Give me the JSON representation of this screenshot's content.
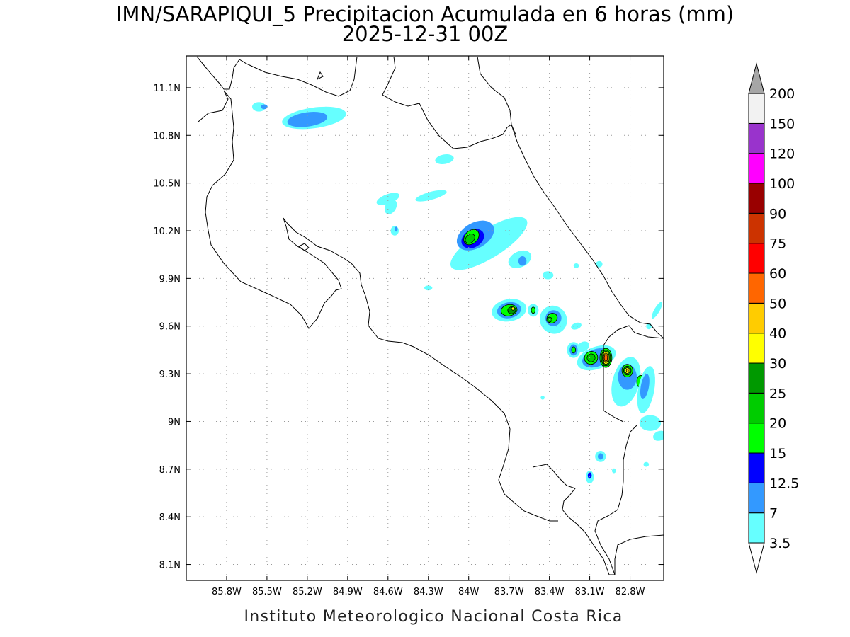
{
  "title": {
    "line1": "IMN/SARAPIQUI_5 Precipitacion Acumulada en 6 horas (mm)",
    "line2": "2025-12-31 00Z"
  },
  "footer": "Instituto Meteorologico Nacional Costa Rica",
  "map": {
    "lon_range": [
      -86.1,
      -82.55
    ],
    "lat_range": [
      8.0,
      11.3
    ],
    "lon_ticks": [
      {
        "value": -85.8,
        "label": "85.8W"
      },
      {
        "value": -85.5,
        "label": "85.5W"
      },
      {
        "value": -85.2,
        "label": "85.2W"
      },
      {
        "value": -84.9,
        "label": "84.9W"
      },
      {
        "value": -84.6,
        "label": "84.6W"
      },
      {
        "value": -84.3,
        "label": "84.3W"
      },
      {
        "value": -84.0,
        "label": "84W"
      },
      {
        "value": -83.7,
        "label": "83.7W"
      },
      {
        "value": -83.4,
        "label": "83.4W"
      },
      {
        "value": -83.1,
        "label": "83.1W"
      },
      {
        "value": -82.8,
        "label": "82.8W"
      }
    ],
    "lat_ticks": [
      {
        "value": 11.1,
        "label": "11.1N"
      },
      {
        "value": 10.8,
        "label": "10.8N"
      },
      {
        "value": 10.5,
        "label": "10.5N"
      },
      {
        "value": 10.2,
        "label": "10.2N"
      },
      {
        "value": 9.9,
        "label": "9.9N"
      },
      {
        "value": 9.6,
        "label": "9.6N"
      },
      {
        "value": 9.3,
        "label": "9.3N"
      },
      {
        "value": 9.0,
        "label": "9N"
      },
      {
        "value": 8.7,
        "label": "8.7N"
      },
      {
        "value": 8.4,
        "label": "8.4N"
      },
      {
        "value": 8.1,
        "label": "8.1N"
      }
    ]
  },
  "colorbar": {
    "levels": [
      "3.5",
      "7",
      "12.5",
      "15",
      "20",
      "25",
      "30",
      "40",
      "50",
      "60",
      "75",
      "90",
      "100",
      "120",
      "150",
      "200"
    ],
    "colors": [
      "#66ffff",
      "#3399ff",
      "#0000ff",
      "#00ff00",
      "#00cc00",
      "#009900",
      "#ffff00",
      "#ffcc00",
      "#ff6600",
      "#ff0000",
      "#cc3300",
      "#990000",
      "#ff00ff",
      "#9933cc",
      "#f2f2f2"
    ],
    "under_color": "#ffffff",
    "over_color": "#a6a6a6"
  },
  "precip_cells": [
    {
      "lon": -85.56,
      "lat": 10.98,
      "rx": 0.05,
      "ry": 0.03,
      "rot": 0,
      "level": 1
    },
    {
      "lon": -85.52,
      "lat": 10.98,
      "rx": 0.025,
      "ry": 0.015,
      "rot": 0,
      "level": 2
    },
    {
      "lon": -85.15,
      "lat": 10.91,
      "rx": 0.24,
      "ry": 0.065,
      "rot": -8,
      "level": 1
    },
    {
      "lon": -85.2,
      "lat": 10.9,
      "rx": 0.15,
      "ry": 0.045,
      "rot": -8,
      "level": 2
    },
    {
      "lon": -84.18,
      "lat": 10.65,
      "rx": 0.07,
      "ry": 0.03,
      "rot": -10,
      "level": 1
    },
    {
      "lon": -84.6,
      "lat": 10.4,
      "rx": 0.09,
      "ry": 0.03,
      "rot": -20,
      "level": 1
    },
    {
      "lon": -84.58,
      "lat": 10.35,
      "rx": 0.04,
      "ry": 0.05,
      "rot": 30,
      "level": 1
    },
    {
      "lon": -84.28,
      "lat": 10.42,
      "rx": 0.12,
      "ry": 0.025,
      "rot": -15,
      "level": 1
    },
    {
      "lon": -84.55,
      "lat": 10.2,
      "rx": 0.03,
      "ry": 0.03,
      "rot": 0,
      "level": 1
    },
    {
      "lon": -84.54,
      "lat": 10.21,
      "rx": 0.012,
      "ry": 0.015,
      "rot": 0,
      "level": 2
    },
    {
      "lon": -83.85,
      "lat": 10.12,
      "rx": 0.33,
      "ry": 0.09,
      "rot": -32,
      "level": 1
    },
    {
      "lon": -83.95,
      "lat": 10.17,
      "rx": 0.15,
      "ry": 0.08,
      "rot": -30,
      "level": 2
    },
    {
      "lon": -83.97,
      "lat": 10.15,
      "rx": 0.09,
      "ry": 0.055,
      "rot": -30,
      "level": 3
    },
    {
      "lon": -83.98,
      "lat": 10.16,
      "rx": 0.065,
      "ry": 0.04,
      "rot": -45,
      "level": 4
    },
    {
      "lon": -83.99,
      "lat": 10.15,
      "rx": 0.04,
      "ry": 0.025,
      "rot": -45,
      "level": 5
    },
    {
      "lon": -83.62,
      "lat": 10.02,
      "rx": 0.09,
      "ry": 0.05,
      "rot": -25,
      "level": 1
    },
    {
      "lon": -83.6,
      "lat": 10.01,
      "rx": 0.03,
      "ry": 0.03,
      "rot": 0,
      "level": 2
    },
    {
      "lon": -84.3,
      "lat": 9.84,
      "rx": 0.03,
      "ry": 0.015,
      "rot": 0,
      "level": 1
    },
    {
      "lon": -83.41,
      "lat": 9.92,
      "rx": 0.04,
      "ry": 0.025,
      "rot": 0,
      "level": 1
    },
    {
      "lon": -83.03,
      "lat": 9.99,
      "rx": 0.025,
      "ry": 0.02,
      "rot": 0,
      "level": 1
    },
    {
      "lon": -83.2,
      "lat": 9.98,
      "rx": 0.02,
      "ry": 0.015,
      "rot": 0,
      "level": 1
    },
    {
      "lon": -83.7,
      "lat": 9.7,
      "rx": 0.13,
      "ry": 0.07,
      "rot": -10,
      "level": 1
    },
    {
      "lon": -83.7,
      "lat": 9.7,
      "rx": 0.09,
      "ry": 0.05,
      "rot": -10,
      "level": 2
    },
    {
      "lon": -83.7,
      "lat": 9.7,
      "rx": 0.06,
      "ry": 0.035,
      "rot": -10,
      "level": 4
    },
    {
      "lon": -83.68,
      "lat": 9.7,
      "rx": 0.03,
      "ry": 0.022,
      "rot": -10,
      "level": 6
    },
    {
      "lon": -83.67,
      "lat": 9.71,
      "rx": 0.012,
      "ry": 0.01,
      "rot": 0,
      "level": 7
    },
    {
      "lon": -83.52,
      "lat": 9.7,
      "rx": 0.04,
      "ry": 0.04,
      "rot": 0,
      "level": 1
    },
    {
      "lon": -83.52,
      "lat": 9.7,
      "rx": 0.015,
      "ry": 0.02,
      "rot": 0,
      "level": 4
    },
    {
      "lon": -83.37,
      "lat": 9.64,
      "rx": 0.1,
      "ry": 0.09,
      "rot": -30,
      "level": 1
    },
    {
      "lon": -83.37,
      "lat": 9.65,
      "rx": 0.06,
      "ry": 0.05,
      "rot": -30,
      "level": 2
    },
    {
      "lon": -83.38,
      "lat": 9.65,
      "rx": 0.04,
      "ry": 0.03,
      "rot": -30,
      "level": 4
    },
    {
      "lon": -83.4,
      "lat": 9.64,
      "rx": 0.02,
      "ry": 0.015,
      "rot": -30,
      "level": 5
    },
    {
      "lon": -83.2,
      "lat": 9.6,
      "rx": 0.04,
      "ry": 0.02,
      "rot": -20,
      "level": 1
    },
    {
      "lon": -83.15,
      "lat": 9.47,
      "rx": 0.05,
      "ry": 0.03,
      "rot": -30,
      "level": 1
    },
    {
      "lon": -83.22,
      "lat": 9.45,
      "rx": 0.05,
      "ry": 0.05,
      "rot": 0,
      "level": 1
    },
    {
      "lon": -83.22,
      "lat": 9.45,
      "rx": 0.03,
      "ry": 0.035,
      "rot": 0,
      "level": 2
    },
    {
      "lon": -83.22,
      "lat": 9.45,
      "rx": 0.015,
      "ry": 0.02,
      "rot": 0,
      "level": 4
    },
    {
      "lon": -83.05,
      "lat": 9.4,
      "rx": 0.15,
      "ry": 0.07,
      "rot": -20,
      "level": 1
    },
    {
      "lon": -83.05,
      "lat": 9.4,
      "rx": 0.11,
      "ry": 0.055,
      "rot": -20,
      "level": 2
    },
    {
      "lon": -83.09,
      "lat": 9.4,
      "rx": 0.05,
      "ry": 0.04,
      "rot": -30,
      "level": 4
    },
    {
      "lon": -83.09,
      "lat": 9.4,
      "rx": 0.03,
      "ry": 0.025,
      "rot": -30,
      "level": 5
    },
    {
      "lon": -82.98,
      "lat": 9.4,
      "rx": 0.045,
      "ry": 0.06,
      "rot": 0,
      "level": 4
    },
    {
      "lon": -82.98,
      "lat": 9.4,
      "rx": 0.035,
      "ry": 0.05,
      "rot": 0,
      "level": 6
    },
    {
      "lon": -82.98,
      "lat": 9.4,
      "rx": 0.025,
      "ry": 0.04,
      "rot": 0,
      "level": 7
    },
    {
      "lon": -82.98,
      "lat": 9.4,
      "rx": 0.018,
      "ry": 0.03,
      "rot": 0,
      "level": 8
    },
    {
      "lon": -82.98,
      "lat": 9.4,
      "rx": 0.012,
      "ry": 0.022,
      "rot": 0,
      "level": 9
    },
    {
      "lon": -82.83,
      "lat": 9.25,
      "rx": 0.1,
      "ry": 0.16,
      "rot": 15,
      "level": 1
    },
    {
      "lon": -82.82,
      "lat": 9.28,
      "rx": 0.07,
      "ry": 0.08,
      "rot": 0,
      "level": 2
    },
    {
      "lon": -82.82,
      "lat": 9.32,
      "rx": 0.04,
      "ry": 0.04,
      "rot": 0,
      "level": 4
    },
    {
      "lon": -82.82,
      "lat": 9.32,
      "rx": 0.028,
      "ry": 0.028,
      "rot": 0,
      "level": 6
    },
    {
      "lon": -82.82,
      "lat": 9.32,
      "rx": 0.018,
      "ry": 0.018,
      "rot": 0,
      "level": 7
    },
    {
      "lon": -82.82,
      "lat": 9.32,
      "rx": 0.008,
      "ry": 0.008,
      "rot": 0,
      "level": 8
    },
    {
      "lon": -82.72,
      "lat": 9.25,
      "rx": 0.03,
      "ry": 0.04,
      "rot": 0,
      "level": 4
    },
    {
      "lon": -82.68,
      "lat": 9.2,
      "rx": 0.06,
      "ry": 0.15,
      "rot": 10,
      "level": 1
    },
    {
      "lon": -82.69,
      "lat": 9.22,
      "rx": 0.03,
      "ry": 0.08,
      "rot": 10,
      "level": 2
    },
    {
      "lon": -82.65,
      "lat": 8.99,
      "rx": 0.08,
      "ry": 0.05,
      "rot": 0,
      "level": 1
    },
    {
      "lon": -82.58,
      "lat": 8.91,
      "rx": 0.05,
      "ry": 0.03,
      "rot": -20,
      "level": 1
    },
    {
      "lon": -82.6,
      "lat": 9.7,
      "rx": 0.02,
      "ry": 0.06,
      "rot": 30,
      "level": 1
    },
    {
      "lon": -82.66,
      "lat": 9.6,
      "rx": 0.02,
      "ry": 0.02,
      "rot": 0,
      "level": 1
    },
    {
      "lon": -83.02,
      "lat": 8.78,
      "rx": 0.04,
      "ry": 0.035,
      "rot": 0,
      "level": 1
    },
    {
      "lon": -83.02,
      "lat": 8.78,
      "rx": 0.02,
      "ry": 0.02,
      "rot": 0,
      "level": 2
    },
    {
      "lon": -83.1,
      "lat": 8.65,
      "rx": 0.03,
      "ry": 0.04,
      "rot": 0,
      "level": 1
    },
    {
      "lon": -83.1,
      "lat": 8.66,
      "rx": 0.015,
      "ry": 0.02,
      "rot": 0,
      "level": 3
    },
    {
      "lon": -82.92,
      "lat": 8.69,
      "rx": 0.015,
      "ry": 0.015,
      "rot": 0,
      "level": 1
    },
    {
      "lon": -82.68,
      "lat": 8.73,
      "rx": 0.02,
      "ry": 0.015,
      "rot": 0,
      "level": 1
    },
    {
      "lon": -83.45,
      "lat": 9.15,
      "rx": 0.015,
      "ry": 0.012,
      "rot": 0,
      "level": 1
    }
  ]
}
